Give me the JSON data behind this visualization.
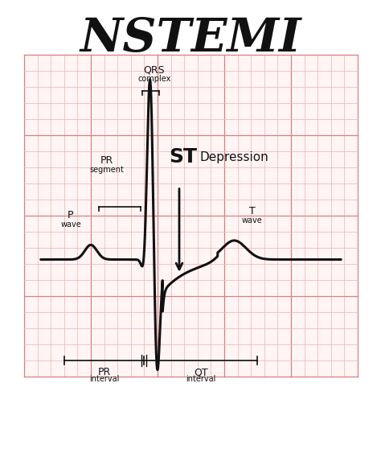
{
  "title": "NSTEMI",
  "title_fontsize": 42,
  "background_color": "#ffffff",
  "grid_bg_color": "#fff5f5",
  "grid_minor_color": "#f0b0b0",
  "grid_major_color": "#d98080",
  "ecg_color": "#111111",
  "ecg_linewidth": 2.2,
  "label_color": "#111111",
  "label_fontsize": 8,
  "ST_fontsize": 18,
  "Depression_fontsize": 11,
  "xlim": [
    0,
    10
  ],
  "ylim": [
    -4.5,
    8.0
  ]
}
